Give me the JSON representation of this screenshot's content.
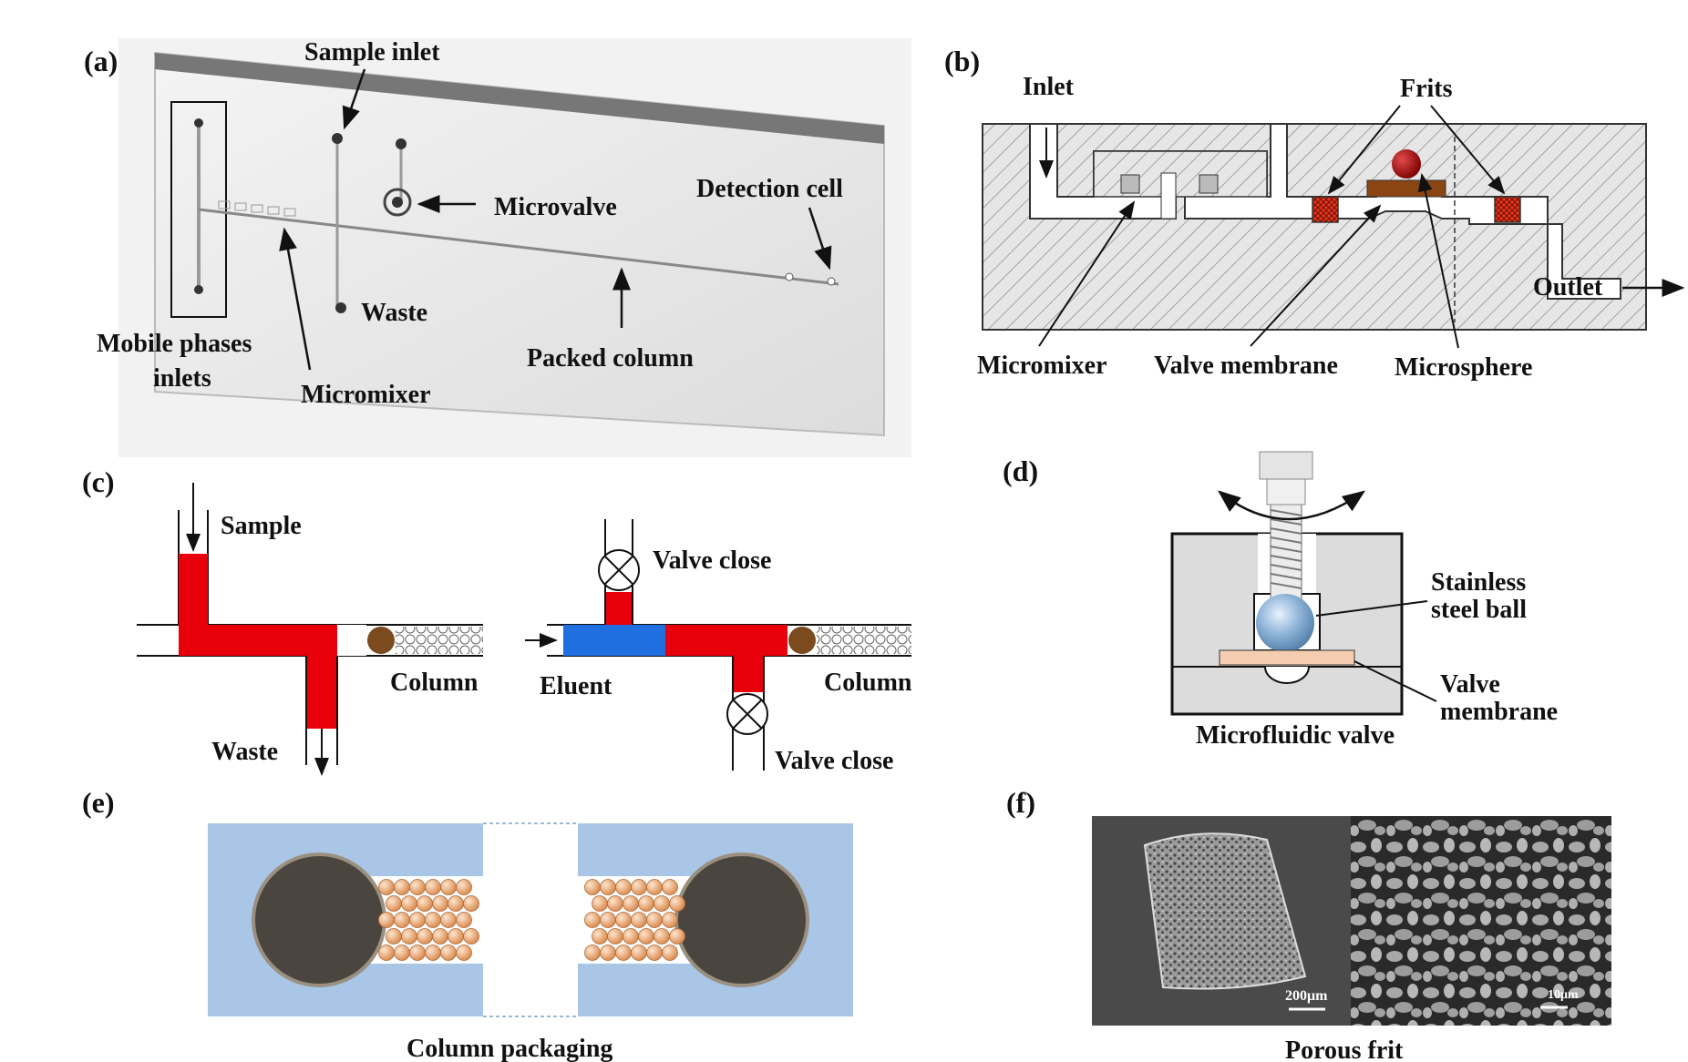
{
  "panels": {
    "a": {
      "tag": "(a)",
      "labels": {
        "sample_inlet": "Sample inlet",
        "microvalve": "Microvalve",
        "detection_cell": "Detection cell",
        "waste": "Waste",
        "mobile_phases_1": "Mobile phases",
        "mobile_phases_2": "inlets",
        "packed_column": "Packed column",
        "micromixer": "Micromixer"
      }
    },
    "b": {
      "tag": "(b)",
      "labels": {
        "inlet": "Inlet",
        "frits": "Frits",
        "outlet": "Outlet",
        "micromixer": "Micromixer",
        "valve_membrane": "Valve membrane",
        "microsphere": "Microsphere"
      }
    },
    "c": {
      "tag": "(c)",
      "labels": {
        "sample": "Sample",
        "column_left": "Column",
        "waste": "Waste",
        "valve_close_top": "Valve close",
        "eluent": "Eluent",
        "column_right": "Column",
        "valve_close_bottom": "Valve close"
      }
    },
    "d": {
      "tag": "(d)",
      "labels": {
        "ball_1": "Stainless",
        "ball_2": "steel ball",
        "membrane_1": "Valve",
        "membrane_2": "membrane",
        "caption": "Microfluidic valve"
      }
    },
    "e": {
      "tag": "(e)",
      "caption": "Column packaging"
    },
    "f": {
      "tag": "(f)",
      "scale_left": "200μm",
      "scale_right": "10μm",
      "caption": "Porous frit"
    }
  },
  "colors": {
    "sample_red": "#e8000b",
    "eluent_blue": "#1f6fe0",
    "frit_brown": "#8b4513",
    "frit_red": "#e03010",
    "chip_blue": "#a9c6e6",
    "bead_peach": "#e9a878",
    "membrane_pink": "#f4cdb0",
    "ball_blue": "#8fb4d8",
    "sem_gray": "#6a6a6a"
  }
}
